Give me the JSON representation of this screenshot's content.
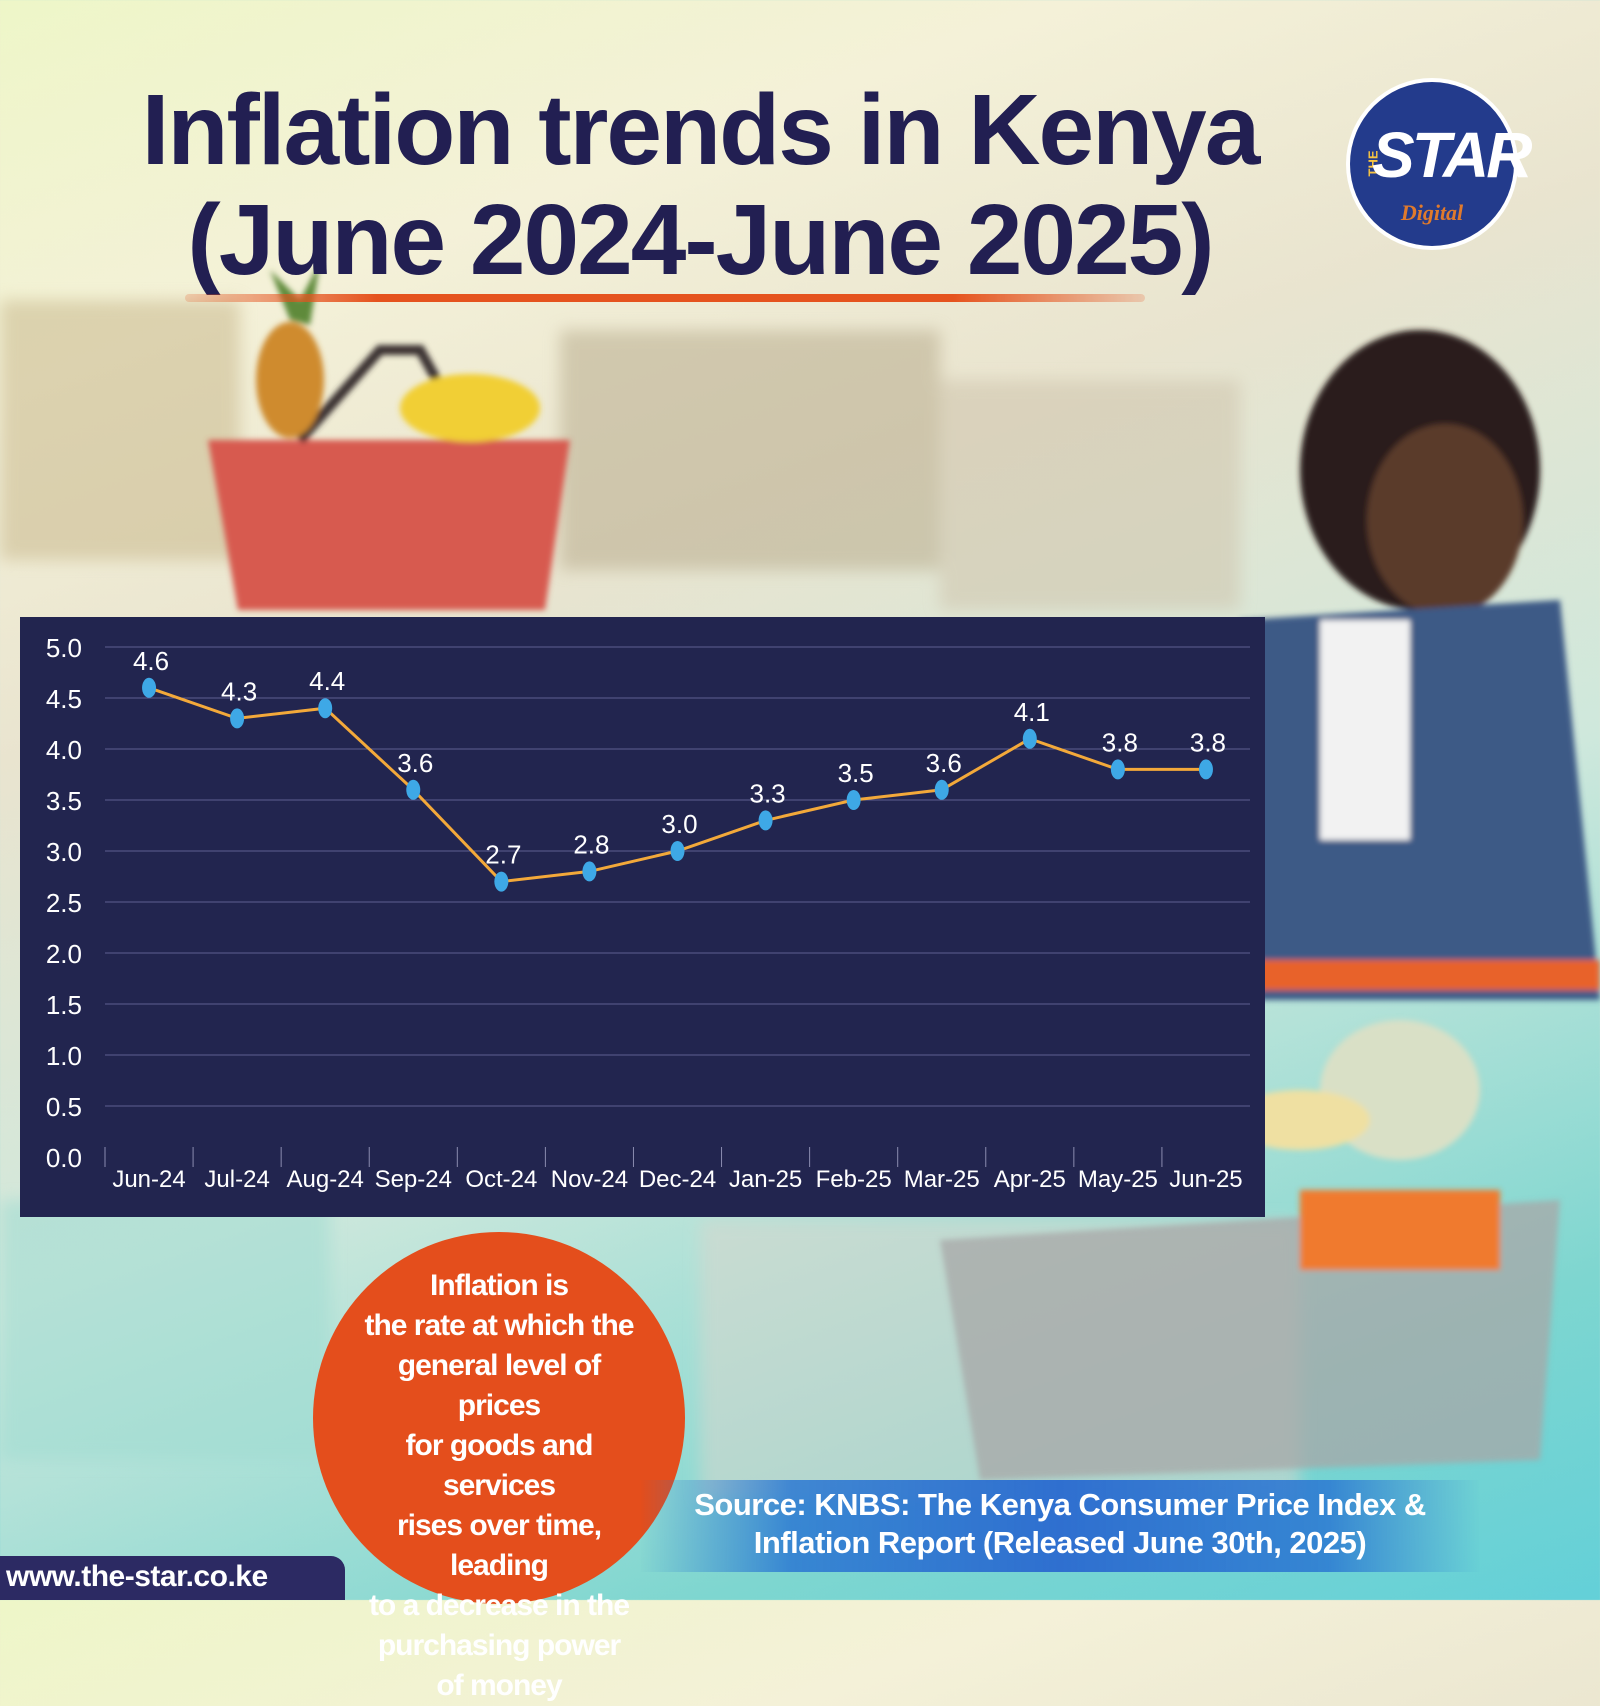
{
  "header": {
    "title_line1": "Inflation trends in Kenya",
    "title_line2": "(June 2024-June 2025)"
  },
  "logo": {
    "the": "THE",
    "star": "STAR",
    "digital": "Digital"
  },
  "chart_data": {
    "type": "line",
    "title": "Inflation trends in Kenya (June 2024-June 2025)",
    "xlabel": "",
    "ylabel": "",
    "categories": [
      "Jun-24",
      "Jul-24",
      "Aug-24",
      "Sep-24",
      "Oct-24",
      "Nov-24",
      "Dec-24",
      "Jan-25",
      "Feb-25",
      "Mar-25",
      "Apr-25",
      "May-25",
      "Jun-25"
    ],
    "series": [
      {
        "values": [
          4.6,
          4.3,
          4.4,
          3.6,
          2.7,
          2.8,
          3.0,
          3.3,
          3.5,
          3.6,
          4.1,
          3.8,
          3.8
        ],
        "color": "#f3a93a"
      }
    ],
    "data_labels": [
      "4.6",
      "4.3",
      "4.4",
      "3.6",
      "2.7",
      "2.8",
      "3.0",
      "3.3",
      "3.5",
      "3.6",
      "4.1",
      "3.8",
      "3.8"
    ],
    "ylim": [
      0,
      5
    ],
    "yticks": [
      "0.0",
      "0.5",
      "1.0",
      "1.5",
      "2.0",
      "2.5",
      "3.0",
      "3.5",
      "4.0",
      "4.5",
      "5.0"
    ],
    "grid": true,
    "marker_color": "#3ea8e6",
    "background": "#22254f"
  },
  "definition": {
    "text": "Inflation is the rate at which the general level of prices for goods and services rises over time, leading to a decrease in the purchasing power of money",
    "lines": [
      "Inflation is",
      "the rate at which the",
      "general level of prices",
      "for goods and services",
      "rises over time, leading",
      "to a decrease in the",
      "purchasing power",
      "of money"
    ],
    "color": "#e44e1c"
  },
  "source": {
    "line1": "Source: KNBS: The Kenya Consumer Price Index &",
    "line2": "Inflation Report (Released June 30th, 2025)"
  },
  "footer": {
    "url": "www.the-star.co.ke"
  },
  "colors": {
    "title": "#221f52",
    "accent": "#e5531e",
    "brand": "#233b8c"
  }
}
